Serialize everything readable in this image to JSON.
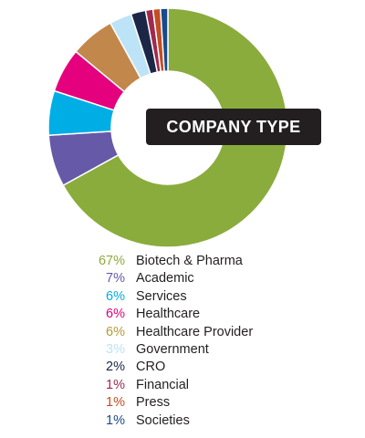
{
  "chart_data": {
    "type": "pie",
    "variant": "donut",
    "title": "COMPANY TYPE",
    "legend_position": "bottom",
    "categories": [
      "Biotech & Pharma",
      "Academic",
      "Services",
      "Healthcare",
      "Healthcare Provider",
      "Government",
      "CRO",
      "Financial",
      "Press",
      "Societies"
    ],
    "values": [
      67,
      7,
      6,
      6,
      6,
      3,
      2,
      1,
      1,
      1
    ],
    "value_labels": [
      "67%",
      "7%",
      "6%",
      "6%",
      "6%",
      "3%",
      "2%",
      "1%",
      "1%",
      "1%"
    ],
    "colors": [
      "#8aac3c",
      "#6559a8",
      "#00aee6",
      "#e5007d",
      "#c2874a",
      "#bde3f6",
      "#1c2748",
      "#a0294e",
      "#c34d24",
      "#1a4a8a"
    ],
    "value_label_colors": [
      "#8aac3c",
      "#6559a8",
      "#00aee6",
      "#e5007d",
      "#b39a3a",
      "#bde3f6",
      "#1c2748",
      "#a0294e",
      "#c34d24",
      "#1a4a8a"
    ]
  }
}
